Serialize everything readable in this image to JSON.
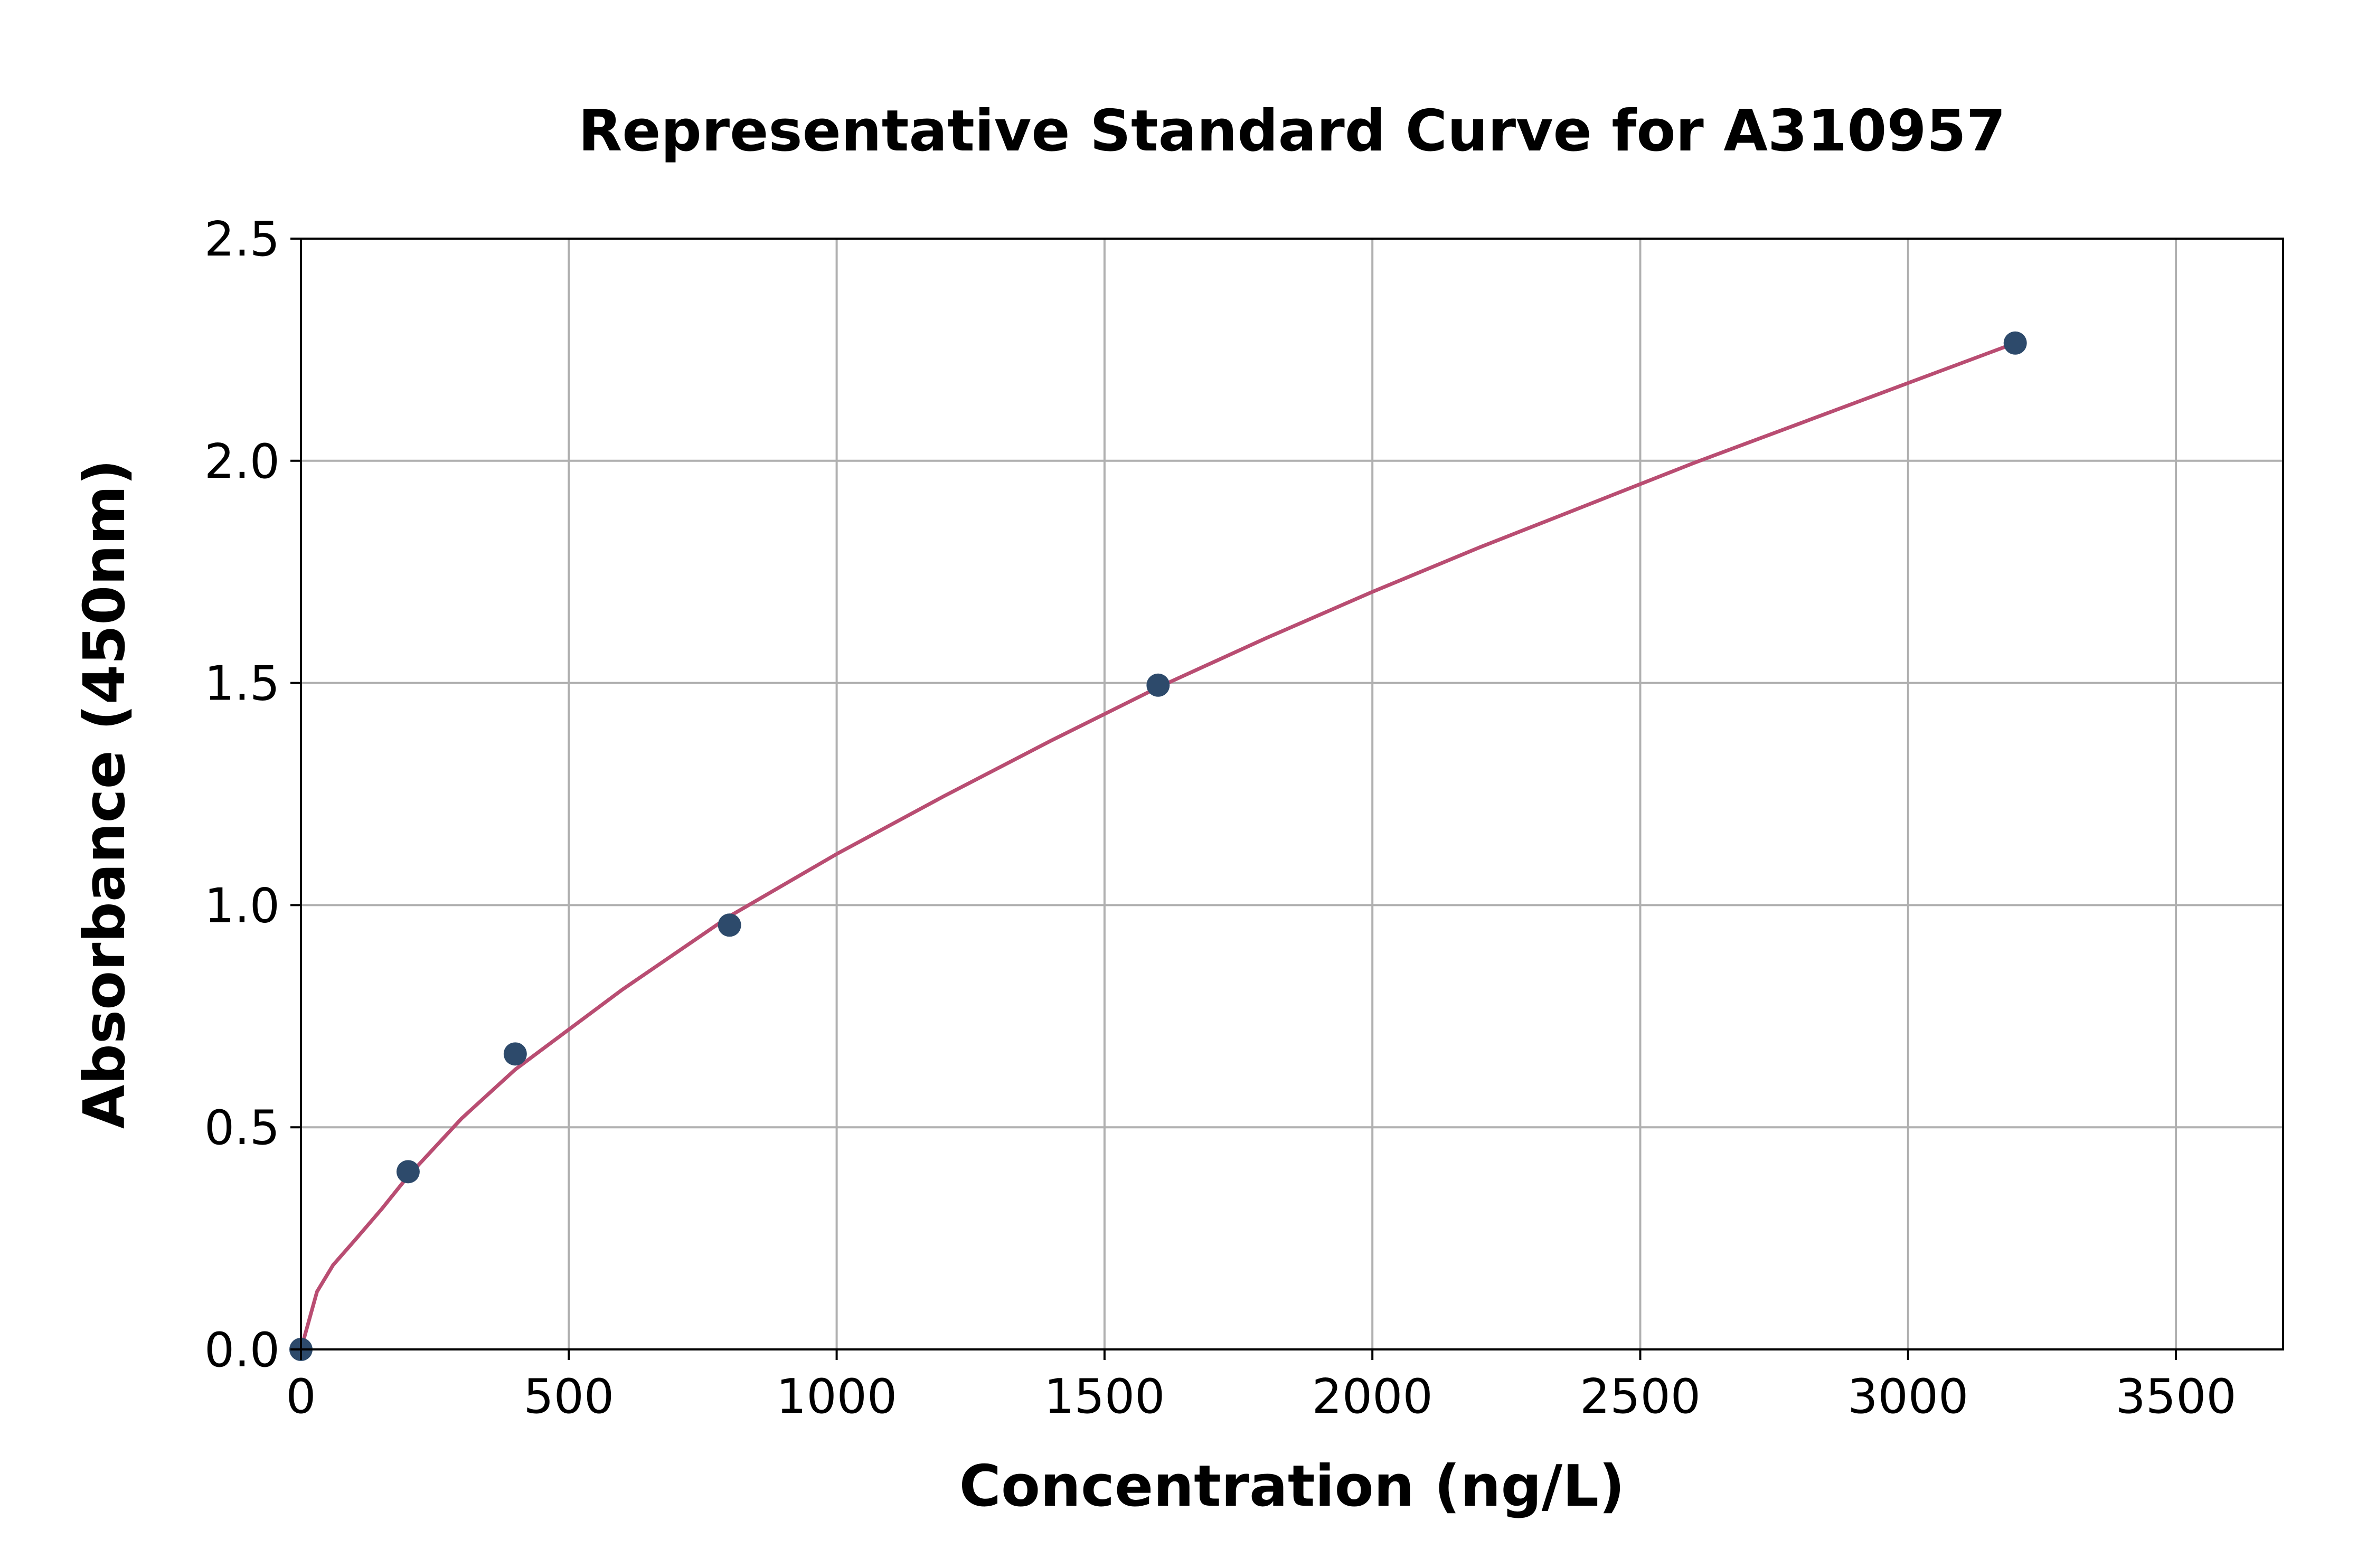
{
  "chart_data": {
    "type": "scatter",
    "title": "Representative Standard Curve for A310957",
    "xlabel": "Concentration (ng/L)",
    "ylabel": "Absorbance (450nm)",
    "xlim": [
      0,
      3700
    ],
    "ylim": [
      0,
      2.5
    ],
    "xticks": [
      0,
      500,
      1000,
      1500,
      2000,
      2500,
      3000,
      3500
    ],
    "xtick_labels": [
      "0",
      "500",
      "1000",
      "1500",
      "2000",
      "2500",
      "3000",
      "3500"
    ],
    "yticks": [
      0,
      0.5,
      1.0,
      1.5,
      2.0,
      2.5
    ],
    "ytick_labels": [
      "0.0",
      "0.5",
      "1.0",
      "1.5",
      "2.0",
      "2.5"
    ],
    "grid": true,
    "series": [
      {
        "kind": "points",
        "x": [
          0,
          200,
          400,
          800,
          1600,
          3200
        ],
        "y": [
          0.0,
          0.4,
          0.665,
          0.955,
          1.495,
          2.265
        ],
        "color": "#2d4a6b"
      },
      {
        "kind": "fit-curve",
        "x": [
          0,
          30,
          60,
          100,
          150,
          200,
          300,
          400,
          600,
          800,
          1000,
          1200,
          1400,
          1600,
          1800,
          2000,
          2200,
          2400,
          2600,
          2800,
          3000,
          3200
        ],
        "y": [
          0.0,
          0.13,
          0.19,
          0.245,
          0.315,
          0.39,
          0.52,
          0.63,
          0.81,
          0.975,
          1.115,
          1.245,
          1.37,
          1.49,
          1.6,
          1.705,
          1.805,
          1.9,
          1.995,
          2.085,
          2.175,
          2.265
        ],
        "color": "#b94d72"
      }
    ]
  }
}
